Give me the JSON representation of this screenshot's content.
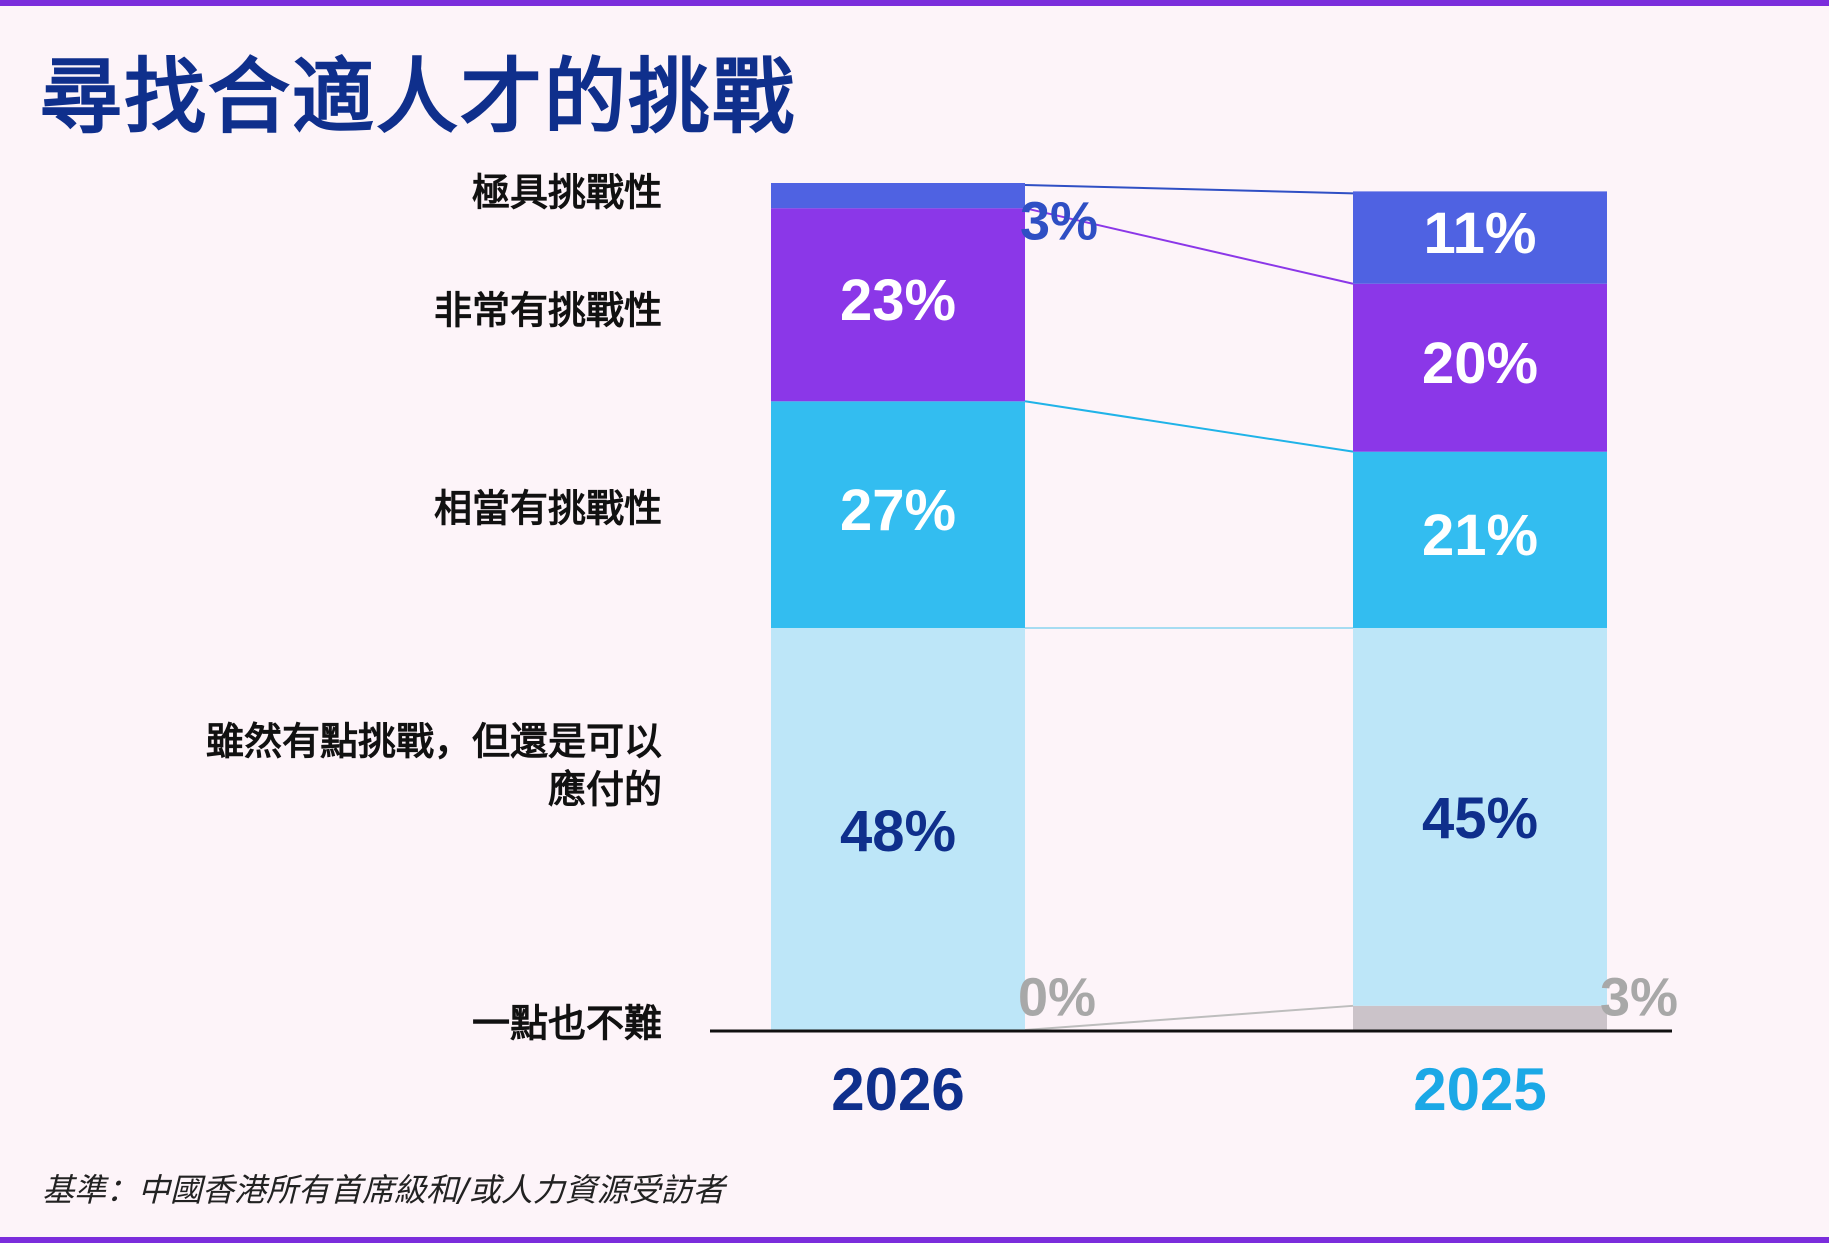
{
  "title": "尋找合適人才的挑戰",
  "footnote": "基準：中國香港所有首席級和/或人力資源受訪者",
  "colors": {
    "frame": "#7b2ddc",
    "title": "#0f2f8c",
    "extremely": "#4f62e2",
    "very": "#8b37e8",
    "quite": "#33bdf0",
    "somewhat": "#bde6f8",
    "not_at_all": "#cbc3c9",
    "year_2026": "#0f2f8c",
    "year_2025": "#1ba8e6"
  },
  "chart_data": {
    "type": "bar",
    "stacked": true,
    "categories": [
      "2026",
      "2025"
    ],
    "series": [
      {
        "name": "一點也不難",
        "values": [
          0,
          3
        ],
        "labels": [
          "0%",
          "3%"
        ]
      },
      {
        "name": "雖然有點挑戰，但還是可以應付的",
        "values": [
          48,
          45
        ],
        "labels": [
          "48%",
          "45%"
        ]
      },
      {
        "name": "相當有挑戰性",
        "values": [
          27,
          21
        ],
        "labels": [
          "27%",
          "21%"
        ]
      },
      {
        "name": "非常有挑戰性",
        "values": [
          23,
          20
        ],
        "labels": [
          "23%",
          "20%"
        ]
      },
      {
        "name": "極具挑戰性",
        "values": [
          3,
          11
        ],
        "labels": [
          "3%",
          "11%"
        ]
      }
    ],
    "category_labels_left": [
      {
        "series": 4,
        "lines": [
          "極具挑戰性"
        ]
      },
      {
        "series": 3,
        "lines": [
          "非常有挑戰性"
        ]
      },
      {
        "series": 2,
        "lines": [
          "相當有挑戰性"
        ]
      },
      {
        "series": 1,
        "lines": [
          "雖然有點挑戰，但還是可以",
          "應付的"
        ]
      },
      {
        "series": 0,
        "lines": [
          "一點也不難"
        ]
      }
    ],
    "ylim": [
      0,
      101
    ],
    "unit": "%",
    "legend": "left",
    "grid": false,
    "connector_lines": true
  }
}
